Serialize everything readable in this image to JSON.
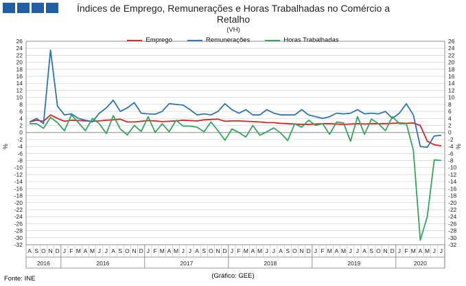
{
  "header": {
    "logo_colors": [
      "#1f5fa8",
      "#1f5fa8",
      "#1f5fa8",
      "#1f5fa8"
    ],
    "title": "Índices de Emprego, Remunerações e Horas Trabalhadas no Comércio a Retalho",
    "subtitle": "(VH)"
  },
  "footer": {
    "source": "Fonte: INE",
    "credit": "(Gráfico: GEE)"
  },
  "chart_data": {
    "type": "line",
    "title": "Índices de Emprego, Remunerações e Horas Trabalhadas no Comércio a Retalho",
    "subtitle": "(VH)",
    "ylabel_left": "%",
    "ylabel_right": "%",
    "ylim": [
      -32,
      26
    ],
    "yticks": [
      -32,
      -30,
      -28,
      -26,
      -24,
      -22,
      -20,
      -18,
      -16,
      -14,
      -12,
      -10,
      -8,
      -6,
      -4,
      -2,
      0,
      2,
      4,
      6,
      8,
      10,
      12,
      14,
      16,
      18,
      20,
      22,
      24,
      26
    ],
    "grid": true,
    "legend_position": "top",
    "x": [
      "A",
      "S",
      "O",
      "N",
      "D",
      "J",
      "F",
      "M",
      "A",
      "M",
      "J",
      "J",
      "A",
      "S",
      "O",
      "N",
      "D",
      "J",
      "F",
      "M",
      "A",
      "M",
      "J",
      "J",
      "A",
      "S",
      "O",
      "N",
      "D",
      "J",
      "F",
      "M",
      "A",
      "M",
      "J",
      "J",
      "A",
      "S",
      "O",
      "N",
      "D",
      "J",
      "F",
      "M",
      "A",
      "M",
      "J",
      "J",
      "A",
      "S",
      "O",
      "N",
      "D",
      "J",
      "F",
      "M",
      "A",
      "M",
      "J",
      "J"
    ],
    "year_groups": [
      {
        "label": "2016",
        "start": 0,
        "end": 4
      },
      {
        "label": "2016",
        "start": 5,
        "end": 16
      },
      {
        "label": "2017",
        "start": 17,
        "end": 28
      },
      {
        "label": "2018",
        "start": 29,
        "end": 40
      },
      {
        "label": "2019",
        "start": 41,
        "end": 52
      },
      {
        "label": "2020",
        "start": 53,
        "end": 59
      }
    ],
    "series": [
      {
        "name": "Emprego",
        "color": "#e02020",
        "values": [
          3.0,
          3.5,
          3.2,
          5.0,
          4.0,
          3.2,
          3.5,
          3.4,
          3.3,
          3.2,
          3.3,
          3.5,
          3.6,
          3.8,
          3.0,
          3.0,
          3.2,
          3.4,
          3.3,
          3.1,
          3.2,
          3.3,
          3.5,
          3.4,
          3.3,
          3.6,
          3.7,
          3.8,
          3.2,
          3.3,
          3.3,
          3.2,
          3.1,
          3.0,
          2.8,
          2.8,
          2.6,
          2.5,
          2.4,
          2.3,
          2.3,
          2.4,
          2.5,
          2.5,
          2.4,
          2.3,
          2.4,
          2.5,
          2.4,
          2.5,
          2.5,
          2.5,
          2.6,
          2.7,
          2.6,
          2.7,
          2.0,
          -2.5,
          -3.5,
          -3.8
        ]
      },
      {
        "name": "Remunerações",
        "color": "#2a73b8",
        "values": [
          3.0,
          4.0,
          2.5,
          23.5,
          7.5,
          5.0,
          5.3,
          4.0,
          3.5,
          3.0,
          5.5,
          7.0,
          9.2,
          6.0,
          7.0,
          8.5,
          5.5,
          5.3,
          5.2,
          6.0,
          8.2,
          8.0,
          7.8,
          6.5,
          5.0,
          5.3,
          5.0,
          6.0,
          8.2,
          6.5,
          5.5,
          6.5,
          5.0,
          5.0,
          6.5,
          5.5,
          5.0,
          5.0,
          5.0,
          6.5,
          5.0,
          4.5,
          4.0,
          4.5,
          5.5,
          5.3,
          5.5,
          6.5,
          5.3,
          5.5,
          5.3,
          6.0,
          4.0,
          5.5,
          8.2,
          5.0,
          -4.0,
          -4.2,
          -1.0,
          -0.8
        ]
      },
      {
        "name": "Horas Trabalhadas",
        "color": "#2ea85a",
        "values": [
          2.5,
          2.5,
          1.2,
          4.3,
          2.8,
          0.5,
          5.0,
          2.8,
          0.5,
          4.0,
          2.5,
          -0.3,
          4.8,
          1.0,
          -0.7,
          2.0,
          0.3,
          4.5,
          0.0,
          2.5,
          0.2,
          3.5,
          1.8,
          1.8,
          1.5,
          0.2,
          3.0,
          0.5,
          -2.2,
          1.0,
          0.0,
          -1.3,
          2.0,
          -0.8,
          0.2,
          1.3,
          -0.2,
          -2.3,
          2.5,
          1.5,
          3.5,
          2.0,
          2.5,
          -0.5,
          3.0,
          2.7,
          -2.5,
          4.5,
          -0.5,
          3.8,
          2.5,
          0.5,
          4.5,
          2.5,
          2.5,
          -5.0,
          -30.7,
          -24.0,
          -7.8,
          -8.0
        ]
      }
    ]
  }
}
